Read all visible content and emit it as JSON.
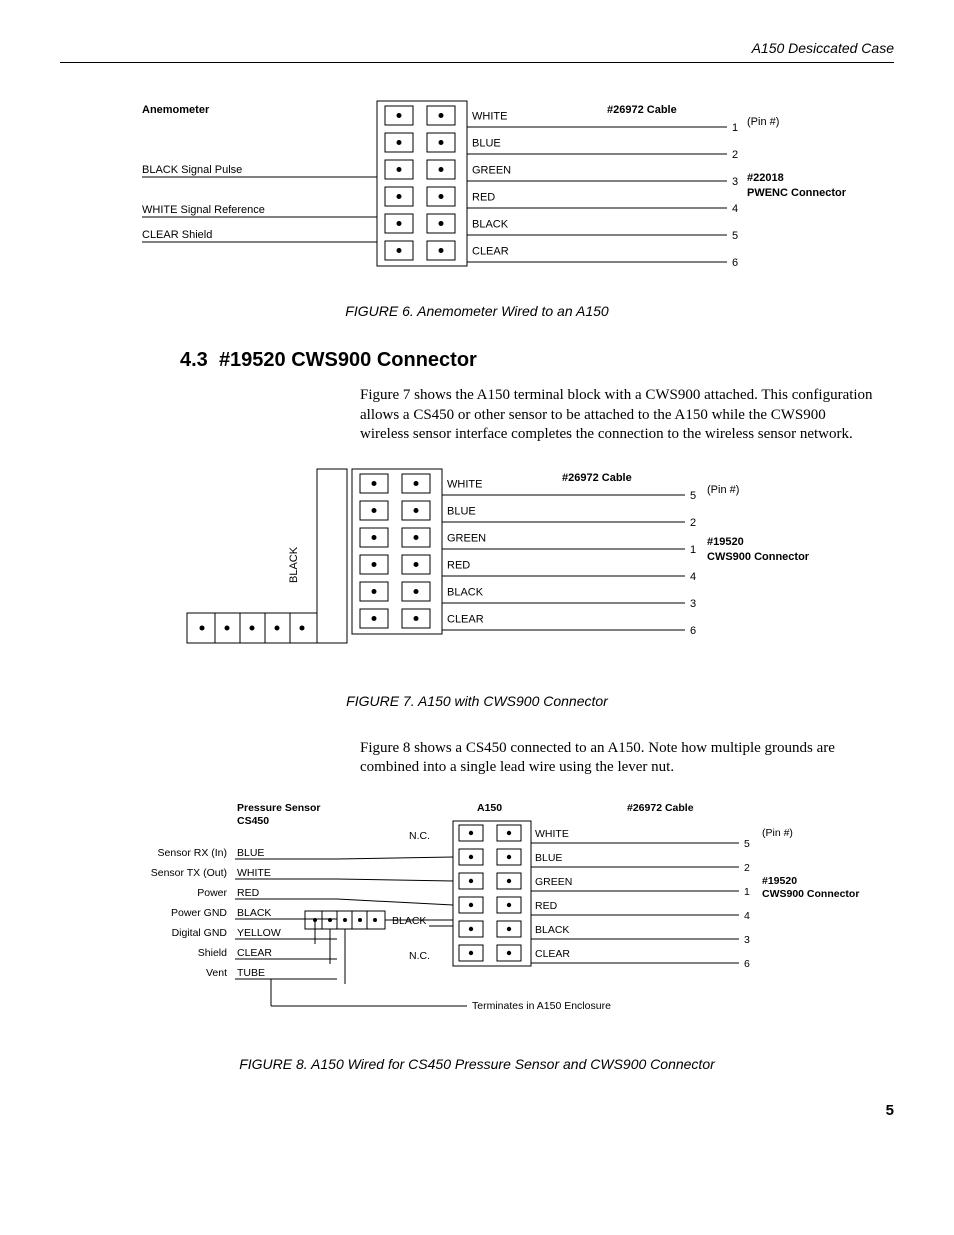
{
  "header": {
    "title": "A150 Desiccated Case"
  },
  "page_number": "5",
  "section": {
    "num": "4.3",
    "title": "#19520 CWS900 Connector"
  },
  "para1": "Figure 7 shows the A150 terminal block with a CWS900 attached.  This configuration allows a CS450 or other sensor to be attached to the A150 while the CWS900 wireless sensor interface completes the connection to the wireless sensor network.",
  "para2": "Figure 8 shows a CS450 connected to an A150.  Note how multiple grounds are combined into a single lead wire using the lever nut.",
  "fig6": {
    "caption": "FIGURE 6.  Anemometer Wired to an A150",
    "left_title": "Anemometer",
    "left_signals": [
      "BLACK  Signal Pulse",
      "WHITE  Signal Reference",
      "CLEAR  Shield"
    ],
    "cable_label": "#26972 Cable",
    "pin_suffix": "(Pin #)",
    "connector_lines": [
      "#22018",
      "PWENC Connector"
    ],
    "rows": [
      {
        "color": "WHITE",
        "pin": "1"
      },
      {
        "color": "BLUE",
        "pin": "2"
      },
      {
        "color": "GREEN",
        "pin": "3"
      },
      {
        "color": "RED",
        "pin": "4"
      },
      {
        "color": "BLACK",
        "pin": "5"
      },
      {
        "color": "CLEAR",
        "pin": "6"
      }
    ]
  },
  "fig7": {
    "caption": "FIGURE 7.  A150 with CWS900 Connector",
    "cable_label": "#26972 Cable",
    "pin_suffix": "(Pin #)",
    "connector_lines": [
      "#19520",
      "CWS900 Connector"
    ],
    "side_label": "BLACK",
    "rows": [
      {
        "color": "WHITE",
        "pin": "5"
      },
      {
        "color": "BLUE",
        "pin": "2"
      },
      {
        "color": "GREEN",
        "pin": "1"
      },
      {
        "color": "RED",
        "pin": "4"
      },
      {
        "color": "BLACK",
        "pin": "3"
      },
      {
        "color": "CLEAR",
        "pin": "6"
      }
    ]
  },
  "fig8": {
    "caption": "FIGURE 8.  A150 Wired for CS450 Pressure Sensor and CWS900 Connector",
    "left_title_l1": "Pressure Sensor",
    "left_title_l2": "CS450",
    "center_title": "A150",
    "cable_label": "#26972 Cable",
    "pin_suffix": "(Pin #)",
    "connector_lines": [
      "#19520",
      "CWS900 Connector"
    ],
    "nc": "N.C.",
    "black_wire": "BLACK",
    "terminate": "Terminates in A150 Enclosure",
    "left_signals": [
      {
        "label": "Sensor RX (In)",
        "color": "BLUE"
      },
      {
        "label": "Sensor TX (Out)",
        "color": "WHITE"
      },
      {
        "label": "Power",
        "color": "RED"
      },
      {
        "label": "Power GND",
        "color": "BLACK"
      },
      {
        "label": "Digital GND",
        "color": "YELLOW"
      },
      {
        "label": "Shield",
        "color": "CLEAR"
      },
      {
        "label": "Vent",
        "color": "TUBE"
      }
    ],
    "right_rows": [
      {
        "color": "WHITE",
        "pin": "5"
      },
      {
        "color": "BLUE",
        "pin": "2"
      },
      {
        "color": "GREEN",
        "pin": "1"
      },
      {
        "color": "RED",
        "pin": "4"
      },
      {
        "color": "BLACK",
        "pin": "3"
      },
      {
        "color": "CLEAR",
        "pin": "6"
      }
    ]
  }
}
